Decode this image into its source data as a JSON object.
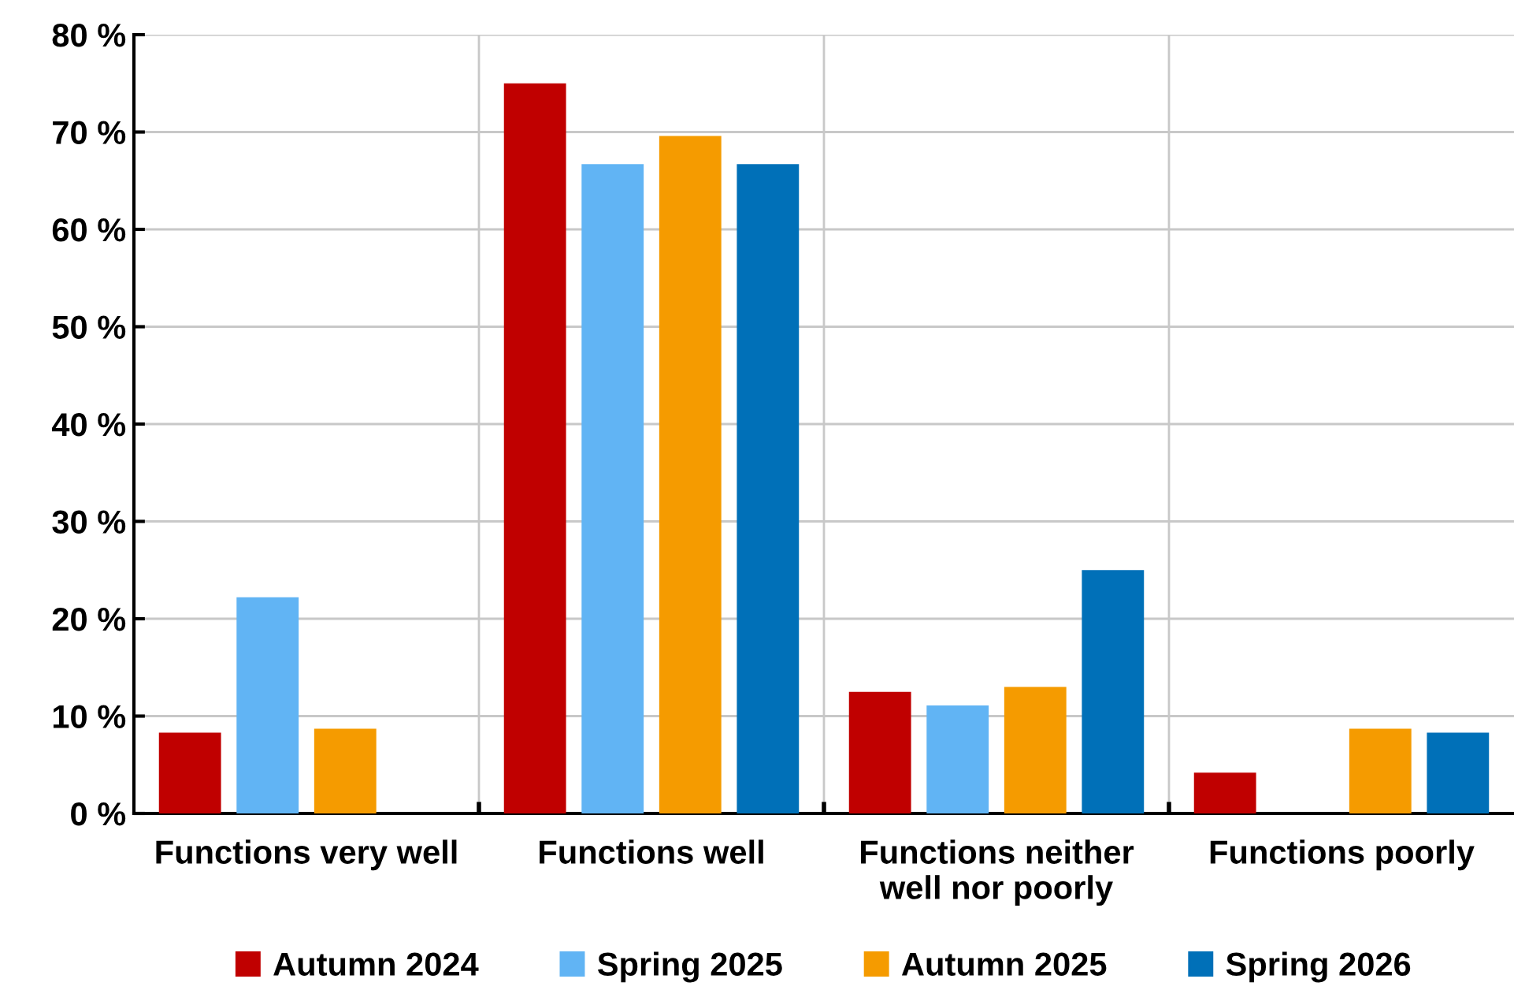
{
  "chart_data": {
    "type": "bar",
    "categories": [
      "Functions very well",
      "Functions well",
      "Functions neither\nwell nor poorly",
      "Functions poorly"
    ],
    "series": [
      {
        "name": "Autumn 2024",
        "color": "#c00000",
        "values": [
          8.3,
          75.0,
          12.5,
          4.2
        ]
      },
      {
        "name": "Spring 2025",
        "color": "#61b4f4",
        "values": [
          22.2,
          66.7,
          11.1,
          0
        ]
      },
      {
        "name": "Autumn 2025",
        "color": "#f59b00",
        "values": [
          8.7,
          69.6,
          13.0,
          8.7
        ]
      },
      {
        "name": "Spring 2026",
        "color": "#0070b8",
        "values": [
          0,
          66.7,
          25.0,
          8.3
        ]
      }
    ],
    "ylim": [
      0,
      80
    ],
    "yticks": [
      {
        "value": 0,
        "label": "0 %"
      },
      {
        "value": 10,
        "label": "10 %"
      },
      {
        "value": 20,
        "label": "20 %"
      },
      {
        "value": 30,
        "label": "30 %"
      },
      {
        "value": 40,
        "label": "40 %"
      },
      {
        "value": 50,
        "label": "50 %"
      },
      {
        "value": 60,
        "label": "60 %"
      },
      {
        "value": 70,
        "label": "70 %"
      },
      {
        "value": 80,
        "label": "80 %"
      }
    ],
    "grid": true,
    "legend": "bottom"
  }
}
